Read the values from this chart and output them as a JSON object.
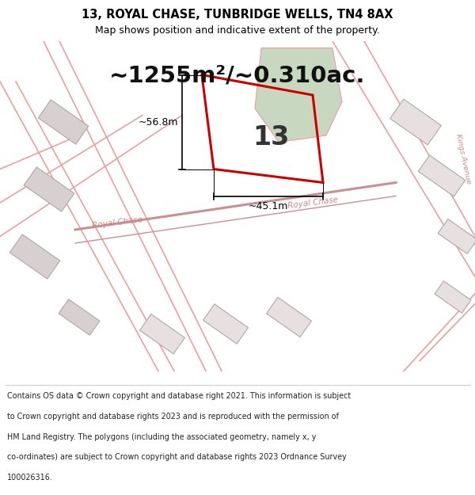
{
  "title_line1": "13, ROYAL CHASE, TUNBRIDGE WELLS, TN4 8AX",
  "title_line2": "Map shows position and indicative extent of the property.",
  "area_text": "~1255m²/~0.310ac.",
  "label_number": "13",
  "dim_width": "~45.1m",
  "dim_height": "~56.8m",
  "footer_lines": [
    "Contains OS data © Crown copyright and database right 2021. This information is subject",
    "to Crown copyright and database rights 2023 and is reproduced with the permission of",
    "HM Land Registry. The polygons (including the associated geometry, namely x, y",
    "co-ordinates) are subject to Crown copyright and database rights 2023 Ordnance Survey",
    "100026316."
  ],
  "map_bg": "#eeecea",
  "plot_outline_color": "#cc0000",
  "road_line_color": "#e8a0a0",
  "building_fill": "#d8d0d0",
  "building_fill2": "#e8e0e0",
  "green_fill": "#c8d8c0",
  "road_label_color": "#cc8888"
}
